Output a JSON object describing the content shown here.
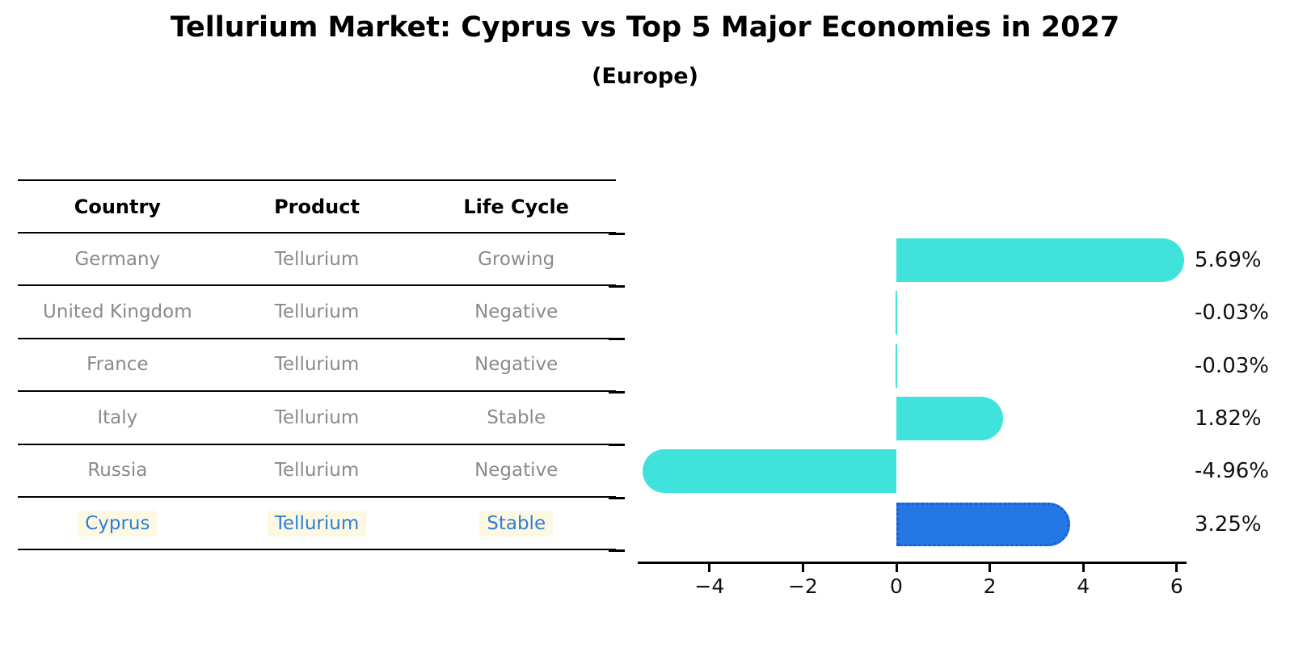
{
  "title": "Tellurium Market: Cyprus vs Top 5 Major Economies in 2027",
  "subtitle": "(Europe)",
  "table": {
    "headers": [
      "Country",
      "Product",
      "Life Cycle"
    ],
    "rows": [
      {
        "country": "Germany",
        "product": "Tellurium",
        "life_cycle": "Growing",
        "highlight": false
      },
      {
        "country": "United Kingdom",
        "product": "Tellurium",
        "life_cycle": "Negative",
        "highlight": false
      },
      {
        "country": "France",
        "product": "Tellurium",
        "life_cycle": "Negative",
        "highlight": false
      },
      {
        "country": "Italy",
        "product": "Tellurium",
        "life_cycle": "Stable",
        "highlight": false
      },
      {
        "country": "Russia",
        "product": "Tellurium",
        "life_cycle": "Negative",
        "highlight": false
      },
      {
        "country": "Cyprus",
        "product": "Tellurium",
        "life_cycle": "Stable",
        "highlight": true
      }
    ]
  },
  "chart_data": {
    "type": "bar",
    "orientation": "horizontal",
    "categories": [
      "Germany",
      "United Kingdom",
      "France",
      "Italy",
      "Russia",
      "Cyprus"
    ],
    "values": [
      5.69,
      -0.03,
      -0.03,
      1.82,
      -4.96,
      3.25
    ],
    "value_labels": [
      "5.69%",
      "-0.03%",
      "-0.03%",
      "1.82%",
      "-4.96%",
      "3.25%"
    ],
    "x_ticks": [
      -4,
      -2,
      0,
      2,
      4,
      6
    ],
    "x_tick_labels": [
      "−4",
      "−2",
      "0",
      "2",
      "4",
      "6"
    ],
    "xlim": [
      -5.53,
      6.21
    ],
    "highlight_index": 5,
    "grid": false,
    "legend": "none",
    "bar_style": "rounded-cap, highlighted bar has dotted outline"
  },
  "colors": {
    "bar_default": "#40e3db",
    "bar_highlight": "#2577e6",
    "bar_highlight_border": "#1660d4",
    "highlight_text": "#2b7fd6",
    "highlight_text_bg": "#fdf8e2",
    "table_text": "#8a8a8a",
    "header_text": "#000000",
    "axis": "#000000"
  }
}
